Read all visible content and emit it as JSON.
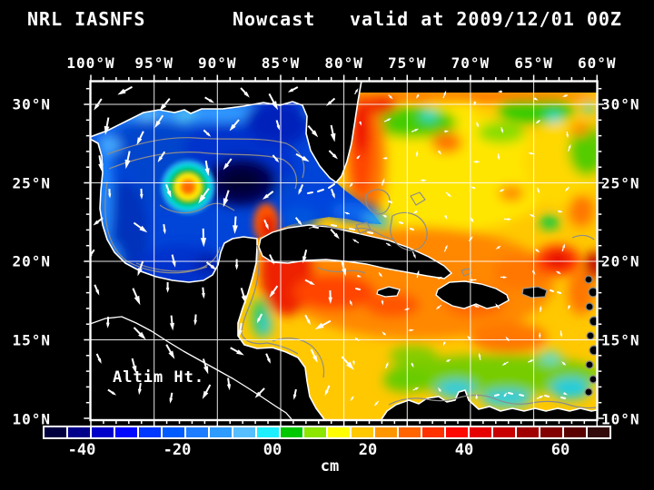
{
  "title": {
    "model": "NRL IASNFS",
    "product": "Nowcast",
    "valid": "valid at 2009/12/01 00Z"
  },
  "axes": {
    "top": [
      "100°W",
      "95°W",
      "90°W",
      "85°W",
      "80°W",
      "75°W",
      "70°W",
      "65°W",
      "60°W"
    ],
    "left": [
      "30°N",
      "25°N",
      "20°N",
      "15°N",
      "10°N"
    ],
    "right": [
      "30°N",
      "25°N",
      "20°N",
      "15°N",
      "10°N"
    ]
  },
  "map": {
    "field_label": "Altim Ht.",
    "background": "#000000",
    "foreground": "#FFFFFF",
    "grid_color": "#FFFFFF",
    "contour_color": "#8C8C8C"
  },
  "colorbar": {
    "unit": "cm",
    "ticks": [
      "-40",
      "-20",
      "00",
      "20",
      "40",
      "60"
    ],
    "cells": [
      "#00003F",
      "#00008B",
      "#0000C8",
      "#0008FF",
      "#0038FF",
      "#005CFF",
      "#1E7DFF",
      "#2E9BFF",
      "#57BFFF",
      "#1EEFFF",
      "#00C800",
      "#8CE600",
      "#FFFF00",
      "#FFC800",
      "#FF9600",
      "#FF6400",
      "#FF3200",
      "#FF0A00",
      "#E60000",
      "#C80000",
      "#A00000",
      "#820000",
      "#5A0000",
      "#320A0A"
    ]
  }
}
